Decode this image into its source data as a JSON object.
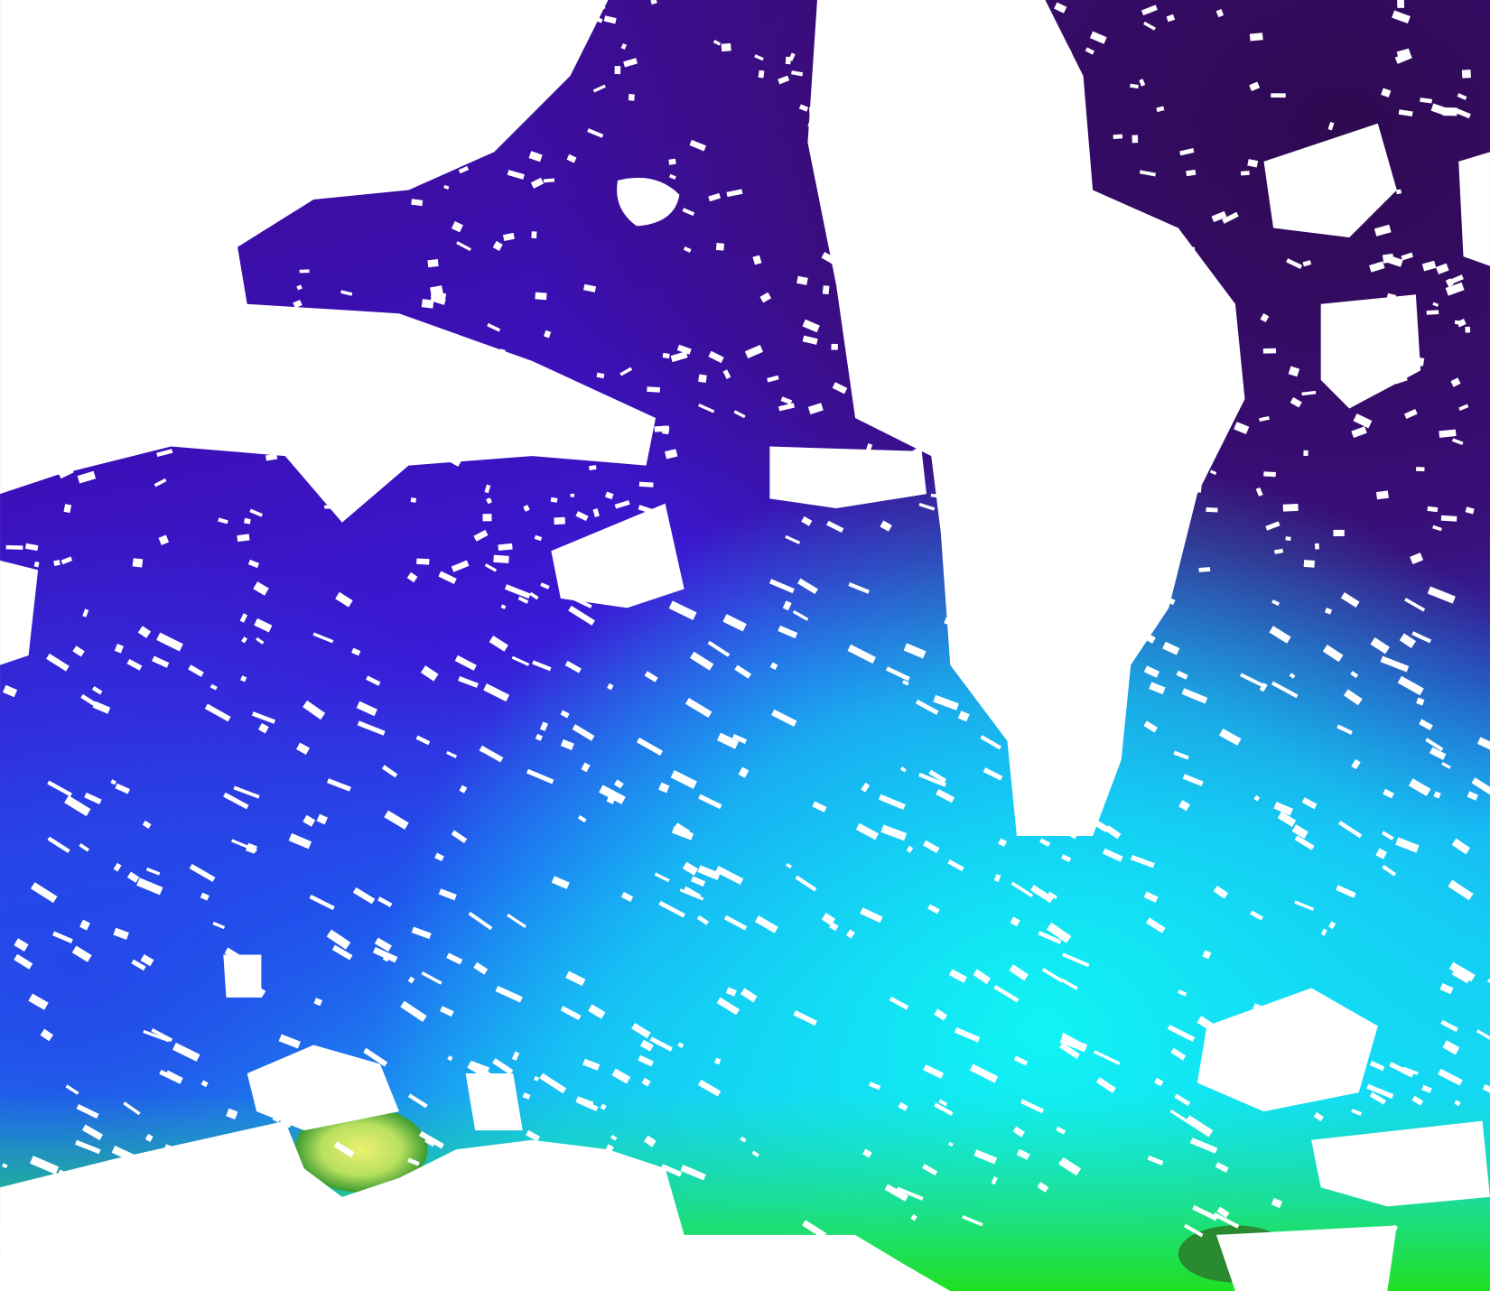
{
  "map": {
    "kind": "satellite ocean-color field with cloud mask",
    "mask_color": "#ffffff",
    "colors": {
      "very_low": "#2e0a5c",
      "low": "#3d0c9e",
      "mid_low": "#3a18d8",
      "mid": "#1a66f0",
      "mid_high": "#12c8f5",
      "high": "#10f0f5",
      "very_high": "#22e022",
      "peak": "#e6f06a",
      "max": "#f5c400"
    }
  }
}
